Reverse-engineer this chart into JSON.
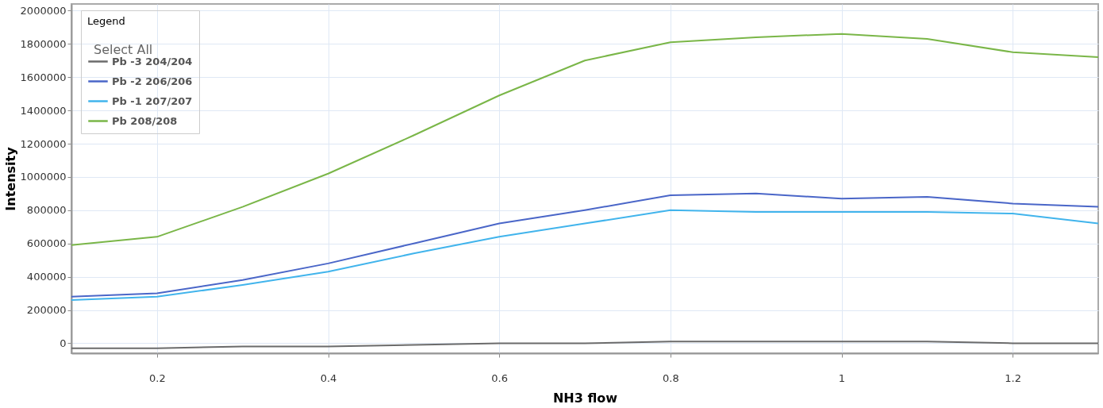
{
  "chart_data": {
    "type": "line",
    "xlabel": "NH3 flow",
    "ylabel": "Intensity",
    "legend_title": "Legend",
    "annotations": [
      "Select All"
    ],
    "x": [
      0.1,
      0.2,
      0.3,
      0.4,
      0.5,
      0.6,
      0.7,
      0.8,
      0.9,
      1.0,
      1.1,
      1.2,
      1.3
    ],
    "series": [
      {
        "name": "Pb -3 204/204",
        "color": "#6b6b6b",
        "values": [
          -30000,
          -30000,
          -20000,
          -20000,
          -10000,
          0,
          0,
          10000,
          10000,
          10000,
          10000,
          0,
          0
        ]
      },
      {
        "name": "Pb -2 206/206",
        "color": "#4a66c8",
        "values": [
          280000,
          300000,
          380000,
          480000,
          600000,
          720000,
          800000,
          890000,
          900000,
          870000,
          880000,
          840000,
          820000
        ]
      },
      {
        "name": "Pb -1 207/207",
        "color": "#41b4ec",
        "values": [
          260000,
          280000,
          350000,
          430000,
          540000,
          640000,
          720000,
          800000,
          790000,
          790000,
          790000,
          780000,
          720000
        ]
      },
      {
        "name": "Pb 208/208",
        "color": "#7ab648",
        "values": [
          590000,
          640000,
          820000,
          1020000,
          1250000,
          1490000,
          1700000,
          1810000,
          1840000,
          1860000,
          1830000,
          1750000,
          1720000
        ]
      }
    ],
    "xlim": [
      0.1,
      1.3
    ],
    "xticks": [
      0.2,
      0.4,
      0.6,
      0.8,
      1,
      1.2
    ],
    "ylim": [
      -60000,
      2040000
    ],
    "yticks": [
      0,
      200000,
      400000,
      600000,
      800000,
      1000000,
      1200000,
      1400000,
      1600000,
      1800000,
      2000000
    ],
    "grid": true,
    "legend": "top left",
    "line_style": "solid"
  }
}
